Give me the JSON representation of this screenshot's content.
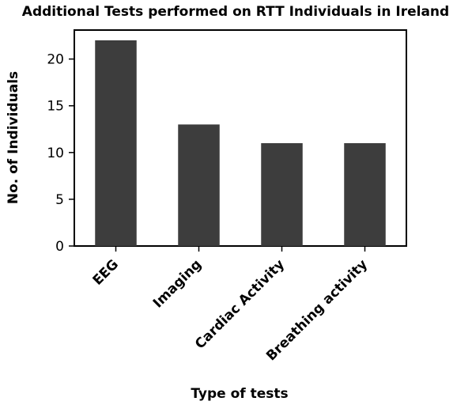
{
  "chart_data": {
    "type": "bar",
    "title": "Additional Tests performed on RTT Individuals in Ireland",
    "xlabel": "Type of tests",
    "ylabel": "No. of Individuals",
    "categories": [
      "EEG",
      "Imaging",
      "Cardiac Activity",
      "Breathing activity"
    ],
    "values": [
      22,
      13,
      11,
      11
    ],
    "ylim": [
      0,
      23.1
    ],
    "yticks": [
      0,
      5,
      10,
      15,
      20
    ],
    "bar_color": "#3d3d3d",
    "grid": false,
    "legend": "none"
  }
}
